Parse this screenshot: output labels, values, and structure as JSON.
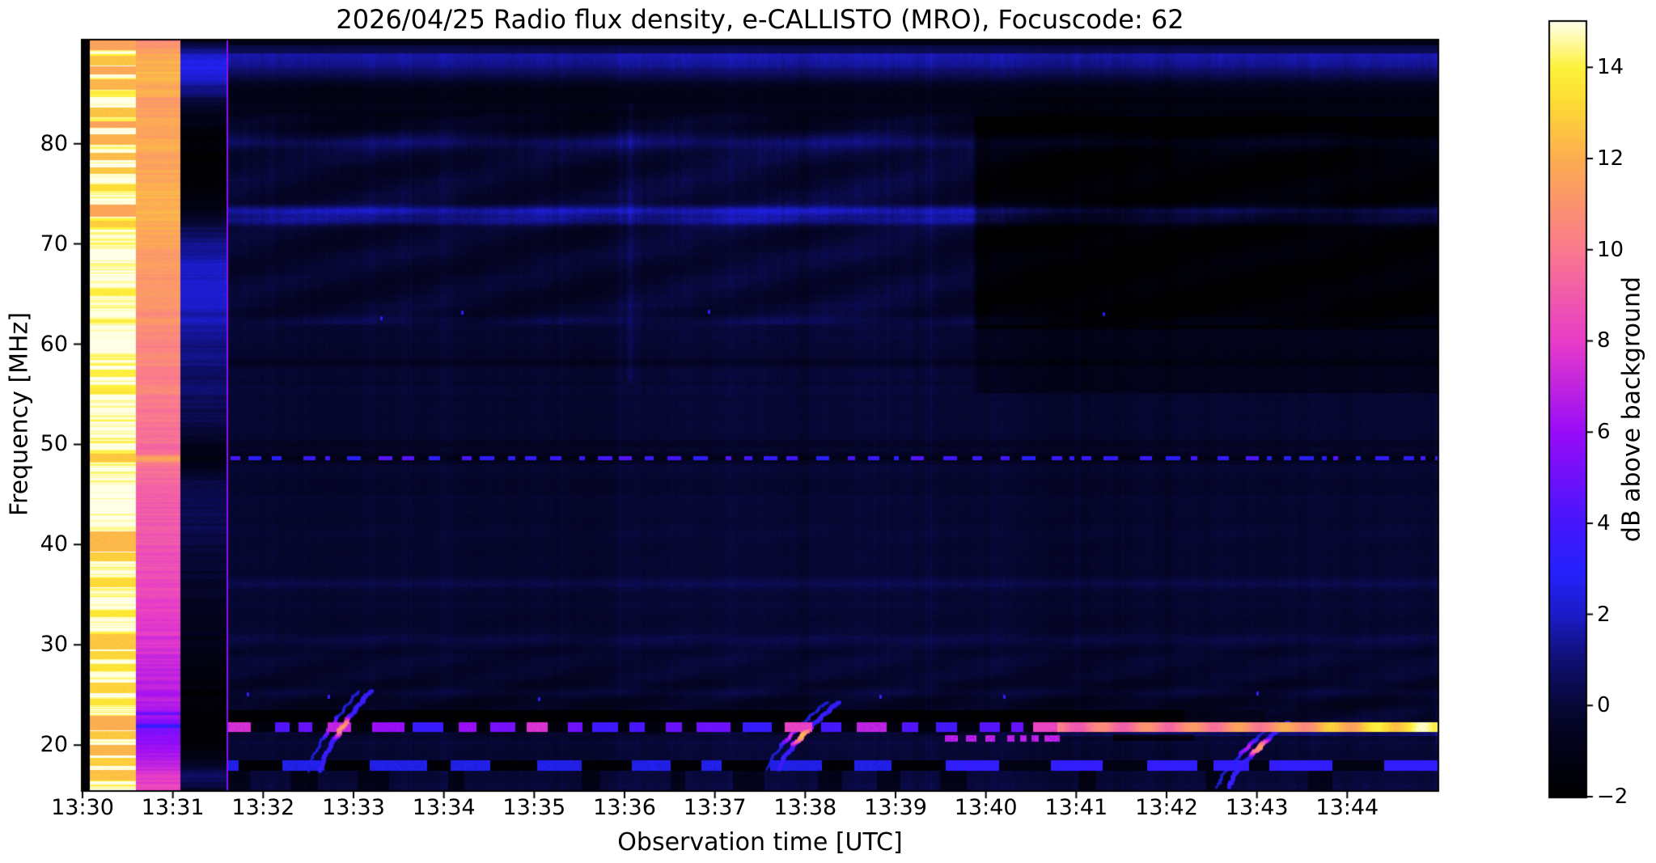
{
  "chart_data": {
    "type": "heatmap",
    "title": "2026/04/25  Radio flux density, e-CALLISTO (MRO), Focuscode: 62",
    "xlabel": "Observation time [UTC]",
    "ylabel": "Frequency [MHz]",
    "x_ticks": [
      "13:30",
      "13:31",
      "13:32",
      "13:33",
      "13:34",
      "13:35",
      "13:36",
      "13:37",
      "13:38",
      "13:39",
      "13:40",
      "13:41",
      "13:42",
      "13:43",
      "13:44"
    ],
    "x_range_minutes": [
      0,
      15
    ],
    "y_ticks_mhz": [
      80,
      70,
      60,
      50,
      40,
      30,
      20
    ],
    "y_range_mhz": [
      15.5,
      90.3
    ],
    "grid": false,
    "colorbar": {
      "label": "dB above background",
      "ticks": [
        "14",
        "12",
        "10",
        "8",
        "6",
        "4",
        "2",
        "0",
        "−2"
      ],
      "tick_values": [
        14,
        12,
        10,
        8,
        6,
        4,
        2,
        0,
        -2
      ],
      "range_db": [
        -2,
        15
      ],
      "colormap_stops": [
        [
          0.0,
          "#000000"
        ],
        [
          0.085,
          "#040422"
        ],
        [
          0.118,
          "#080838"
        ],
        [
          0.18,
          "#101078"
        ],
        [
          0.235,
          "#1c1cc8"
        ],
        [
          0.29,
          "#2422fc"
        ],
        [
          0.353,
          "#4616fc"
        ],
        [
          0.47,
          "#980cf8"
        ],
        [
          0.588,
          "#e83cc8"
        ],
        [
          0.706,
          "#fa7a8e"
        ],
        [
          0.824,
          "#fcae50"
        ],
        [
          0.9,
          "#fdde34"
        ],
        [
          0.941,
          "#fef23c"
        ],
        [
          1.0,
          "#ffffe8"
        ]
      ]
    },
    "features": {
      "calibration_columns": [
        {
          "type": "black-edge",
          "t0": 0.0,
          "t1": 0.085
        },
        {
          "type": "saturated-white",
          "t0": 0.085,
          "t1": 0.595
        },
        {
          "type": "warm-orange-pink",
          "t0": 0.595,
          "t1": 1.083
        },
        {
          "type": "dark-blue-black",
          "t0": 1.083,
          "t1": 1.595
        },
        {
          "type": "purple-divider",
          "t0": 1.595,
          "t1": 1.615
        }
      ],
      "white_column_stripes": [
        [
          90.0,
          0.7,
          11.6
        ],
        [
          88.3,
          0.5,
          12.6
        ],
        [
          87.3,
          0.4,
          11.8
        ],
        [
          85.9,
          0.5,
          12.2
        ],
        [
          83.1,
          0.5,
          12.6
        ],
        [
          81.9,
          0.35,
          11.6
        ],
        [
          80.4,
          0.5,
          12.1
        ],
        [
          78.7,
          0.35,
          12.4
        ],
        [
          77.3,
          0.3,
          12.7
        ],
        [
          75.6,
          0.3,
          13.3
        ],
        [
          73.3,
          0.6,
          11.7
        ],
        [
          72.0,
          0.3,
          12.9
        ],
        [
          65.2,
          0.35,
          13.8
        ],
        [
          57.1,
          0.35,
          13.9
        ],
        [
          48.7,
          0.4,
          12.7
        ],
        [
          40.3,
          1.0,
          12.3
        ],
        [
          38.8,
          0.45,
          12.9
        ],
        [
          36.2,
          0.45,
          13.2
        ],
        [
          33.1,
          0.35,
          13.6
        ],
        [
          30.3,
          0.8,
          12.7
        ],
        [
          29.0,
          0.4,
          13.1
        ],
        [
          27.7,
          0.35,
          13.5
        ],
        [
          25.7,
          0.5,
          13.0
        ],
        [
          24.3,
          0.35,
          13.5
        ],
        [
          22.2,
          0.75,
          12.0
        ],
        [
          21.0,
          0.4,
          12.7
        ],
        [
          19.5,
          0.55,
          12.2
        ],
        [
          18.3,
          0.4,
          12.9
        ],
        [
          17.0,
          0.5,
          12.5
        ]
      ],
      "warm_column_profile_db": [
        [
          15.5,
          8.3
        ],
        [
          16.8,
          7.8
        ],
        [
          18.2,
          7.0
        ],
        [
          19.6,
          6.1
        ],
        [
          20.8,
          5.6
        ],
        [
          21.6,
          5.3
        ],
        [
          21.9,
          3.1
        ],
        [
          22.2,
          5.5
        ],
        [
          22.9,
          6.2
        ],
        [
          23.15,
          4.2
        ],
        [
          23.4,
          6.3
        ],
        [
          25,
          6.8
        ],
        [
          27,
          7.1
        ],
        [
          29,
          7.4
        ],
        [
          31,
          7.7
        ],
        [
          33,
          8.0
        ],
        [
          35,
          8.3
        ],
        [
          38,
          8.6
        ],
        [
          41,
          8.9
        ],
        [
          44,
          9.2
        ],
        [
          46.5,
          9.4
        ],
        [
          48.1,
          9.8
        ],
        [
          48.6,
          11.9
        ],
        [
          49.1,
          9.2
        ],
        [
          50,
          9.5
        ],
        [
          52,
          9.8
        ],
        [
          55,
          10.1
        ],
        [
          58,
          10.4
        ],
        [
          61,
          10.7
        ],
        [
          64,
          11.0
        ],
        [
          67,
          11.2
        ],
        [
          70,
          11.5
        ],
        [
          72,
          11.8
        ],
        [
          74,
          12.1
        ],
        [
          76,
          11.9
        ],
        [
          78,
          11.7
        ],
        [
          80,
          12.0
        ],
        [
          82,
          11.6
        ],
        [
          84,
          11.3
        ],
        [
          85.5,
          11.8
        ],
        [
          87,
          12.2
        ],
        [
          88.5,
          11.7
        ],
        [
          89.5,
          11.2
        ],
        [
          90.3,
          10.6
        ]
      ],
      "dark_column_profile_db": [
        [
          15.5,
          -0.4
        ],
        [
          16.3,
          0.4
        ],
        [
          17.1,
          0.6
        ],
        [
          17.9,
          -0.2
        ],
        [
          18.8,
          -1.1
        ],
        [
          19.8,
          -1.6
        ],
        [
          21,
          -1.8
        ],
        [
          23,
          -1.85
        ],
        [
          24.5,
          -1.65
        ],
        [
          26,
          -1.45
        ],
        [
          28,
          -1.25
        ],
        [
          30,
          -1.05
        ],
        [
          32,
          -0.85
        ],
        [
          34,
          -0.65
        ],
        [
          36,
          -0.35
        ],
        [
          38,
          -0.15
        ],
        [
          40,
          0.1
        ],
        [
          42,
          0.4
        ],
        [
          44,
          0.5
        ],
        [
          46,
          0.3
        ],
        [
          47.5,
          -0.7
        ],
        [
          48.6,
          -1.5
        ],
        [
          50,
          -0.8
        ],
        [
          52,
          0.2
        ],
        [
          54,
          0.5
        ],
        [
          56,
          0.7
        ],
        [
          58,
          0.95
        ],
        [
          60,
          1.3
        ],
        [
          62,
          1.6
        ],
        [
          64,
          2.0
        ],
        [
          66,
          2.1
        ],
        [
          68,
          1.9
        ],
        [
          70,
          1.2
        ],
        [
          71.5,
          0.3
        ],
        [
          73,
          -0.9
        ],
        [
          75,
          -1.6
        ],
        [
          77,
          -1.8
        ],
        [
          79,
          -1.8
        ],
        [
          81,
          -1.55
        ],
        [
          83,
          -0.9
        ],
        [
          84.5,
          0.3
        ],
        [
          86,
          1.7
        ],
        [
          87.5,
          2.7
        ],
        [
          88.6,
          2.2
        ],
        [
          89.6,
          0.6
        ],
        [
          90.3,
          -0.8
        ]
      ],
      "horizontal_lines": [
        [
          88.1,
          2.3,
          1.7
        ],
        [
          89.4,
          1.0,
          0.5
        ],
        [
          85.3,
          1.9,
          -1.15
        ],
        [
          83.05,
          0.6,
          -0.5
        ],
        [
          81.7,
          0.9,
          -0.45
        ],
        [
          80.15,
          0.8,
          1.0
        ],
        [
          73.3,
          0.55,
          1.9
        ],
        [
          72.35,
          0.5,
          1.45
        ],
        [
          62.3,
          0.5,
          0.55
        ],
        [
          58.2,
          0.5,
          -0.4
        ],
        [
          49.9,
          0.45,
          -0.5
        ],
        [
          36.1,
          0.5,
          0.45
        ],
        [
          30.6,
          0.5,
          0.35
        ],
        [
          25.2,
          0.45,
          0.4
        ],
        [
          24.6,
          1.2,
          -0.15
        ],
        [
          20.1,
          0.5,
          0.25
        ]
      ],
      "dark_block": {
        "t0": 9.85,
        "t1": 15,
        "f0": 61.5,
        "f1": 82.7,
        "depth_db": 1.55,
        "sub_f0": 55,
        "sub_f1": 61.5,
        "sub_depth_db": 0.65,
        "top_f1": 84.5,
        "top_depth_db": 0.35
      },
      "bright_vertical_line": {
        "t": 6.06,
        "f0": 56,
        "f1": 84,
        "db_boost": 0.6
      },
      "dotted_line_49mhz": {
        "f": 48.62,
        "half_width_mhz": 0.22,
        "on_db": 2.6
      },
      "rfi_lane_22mhz": {
        "black_band_mhz": [
          22.3,
          23.45
        ],
        "black_until_min": 12.2,
        "black_fade_until_min": 13.1,
        "dashed_band_mhz": [
          21.35,
          22.3
        ],
        "dashed_until_min": 10.79,
        "solid_from_min": 10.79,
        "solid_db_start": 9.2,
        "white_hot_from_min": 13.2,
        "shadow_band_mhz": [
          20.4,
          21.1
        ],
        "shadow_min": [
          11.4,
          12.3
        ],
        "pink_dashes_band_mhz": [
          20.35,
          20.95
        ],
        "pink_dashes_min": [
          9.55,
          10.85
        ],
        "pink_db": 6.0
      },
      "rfi_lane_18mhz": {
        "band_mhz": [
          17.4,
          18.5
        ],
        "on_db": 2.0,
        "off_db": -1.85,
        "bright_from_min": 9.5
      },
      "bursts": [
        {
          "t0": 2.62,
          "t1": 3.18,
          "f0": 17.4,
          "f1": 25.4,
          "core": [
            0.28,
            0.62
          ],
          "core_db": 10.5
        },
        {
          "t0": 7.7,
          "t1": 8.36,
          "f0": 17.6,
          "f1": 24.3,
          "core": [
            0.22,
            0.58
          ],
          "core_db": 11.5
        },
        {
          "t0": 12.68,
          "t1": 13.33,
          "f0": 15.8,
          "f1": 22.3,
          "core": [
            0.35,
            0.7
          ],
          "core_db": 10.5
        }
      ],
      "specks": [
        {
          "t": 2.72,
          "f": 24.9,
          "db": 5
        },
        {
          "t": 5.05,
          "f": 24.6,
          "db": 4.5
        },
        {
          "t": 8.83,
          "f": 24.9,
          "db": 5
        },
        {
          "t": 10.2,
          "f": 24.9,
          "db": 4.5
        },
        {
          "t": 4.2,
          "f": 63.2,
          "db": 4.5
        },
        {
          "t": 6.93,
          "f": 63.3,
          "db": 4.5
        },
        {
          "t": 3.3,
          "f": 62.6,
          "db": 4
        },
        {
          "t": 11.3,
          "f": 63.0,
          "db": 4
        },
        {
          "t": 13.0,
          "f": 25.2,
          "db": 4.5
        },
        {
          "t": 1.83,
          "f": 25.1,
          "db": 4.3
        }
      ]
    }
  }
}
